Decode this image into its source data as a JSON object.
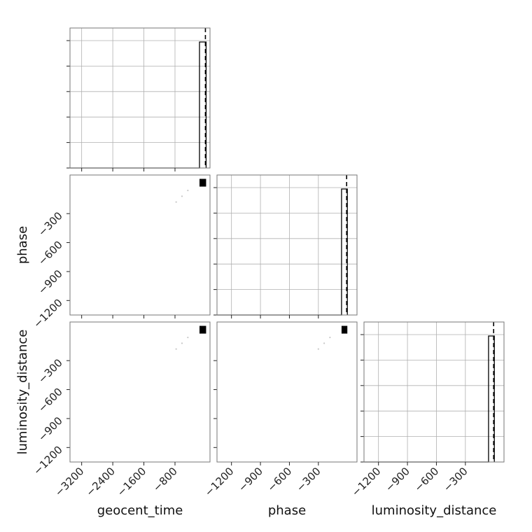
{
  "chart_data": {
    "type": "corner",
    "parameters": [
      "geocent_time",
      "phase",
      "luminosity_distance"
    ],
    "grid": true,
    "colors": {
      "frame": "#777777",
      "grid": "#b0b0b0",
      "hist": "#000000"
    },
    "panels": [
      {
        "id": "hist-geocent_time",
        "row": 0,
        "col": 0,
        "type": "histogram",
        "x_range": [
          -3500,
          100
        ],
        "x_ticks": [
          -3200,
          -2400,
          -1600,
          -800
        ],
        "y_ticks_count": 6,
        "peak_x": [
          -170,
          0
        ],
        "truth_x": 0,
        "hist_height": 0.9
      },
      {
        "id": "scatter-geocent_time-phase",
        "row": 1,
        "col": 0,
        "type": "2d",
        "x_range": [
          -3500,
          100
        ],
        "y_range": [
          -1350,
          100
        ],
        "y_ticks": [
          -300,
          -600,
          -900,
          -1200
        ],
        "y_tick_labels": [
          "−300",
          "−600",
          "−900",
          "−1200"
        ],
        "dots": [
          {
            "x": -770,
            "y": -180
          },
          {
            "x": -620,
            "y": -120
          },
          {
            "x": -470,
            "y": -60
          }
        ],
        "mode_x": [
          -170,
          0
        ],
        "mode_y": [
          -20,
          60
        ]
      },
      {
        "id": "hist-phase",
        "row": 1,
        "col": 1,
        "type": "histogram",
        "x_range": [
          -1350,
          100
        ],
        "x_ticks": [
          -1200,
          -900,
          -600,
          -300
        ],
        "y_ticks_count": 6,
        "peak_x": [
          -60,
          0
        ],
        "truth_x": 0,
        "hist_height": 0.9
      },
      {
        "id": "scatter-geocent_time-luminosity_distance",
        "row": 2,
        "col": 0,
        "type": "2d",
        "x_range": [
          -3500,
          100
        ],
        "y_range": [
          -1350,
          100
        ],
        "x_ticks": [
          -3200,
          -2400,
          -1600,
          -800
        ],
        "x_tick_labels": [
          "−3200",
          "−2400",
          "−1600",
          "−800"
        ],
        "y_ticks": [
          -300,
          -600,
          -900,
          -1200
        ],
        "y_tick_labels": [
          "−300",
          "−600",
          "−900",
          "−1200"
        ],
        "dots": [
          {
            "x": -770,
            "y": -180
          },
          {
            "x": -620,
            "y": -120
          },
          {
            "x": -470,
            "y": -60
          }
        ],
        "mode_x": [
          -170,
          0
        ],
        "mode_y": [
          -20,
          60
        ]
      },
      {
        "id": "scatter-phase-luminosity_distance",
        "row": 2,
        "col": 1,
        "type": "2d",
        "x_range": [
          -1350,
          100
        ],
        "y_range": [
          -1350,
          100
        ],
        "x_ticks": [
          -1200,
          -900,
          -600,
          -300
        ],
        "x_tick_labels": [
          "−1200",
          "−900",
          "−600",
          "−300"
        ],
        "dots": [
          {
            "x": -300,
            "y": -180
          },
          {
            "x": -240,
            "y": -120
          },
          {
            "x": -180,
            "y": -60
          }
        ],
        "mode_x": [
          -60,
          0
        ],
        "mode_y": [
          -20,
          60
        ]
      },
      {
        "id": "hist-luminosity_distance",
        "row": 2,
        "col": 2,
        "type": "histogram",
        "x_range": [
          -1350,
          100
        ],
        "x_ticks": [
          -1200,
          -900,
          -600,
          -300
        ],
        "x_tick_labels": [
          "−1200",
          "−900",
          "−600",
          "−300"
        ],
        "y_ticks_count": 6,
        "peak_x": [
          -60,
          0
        ],
        "truth_x": 0,
        "hist_height": 0.9
      }
    ],
    "axis_labels": {
      "bottom": [
        "geocent_time",
        "phase",
        "luminosity_distance"
      ],
      "left": [
        "",
        "phase",
        "luminosity_distance"
      ]
    }
  }
}
